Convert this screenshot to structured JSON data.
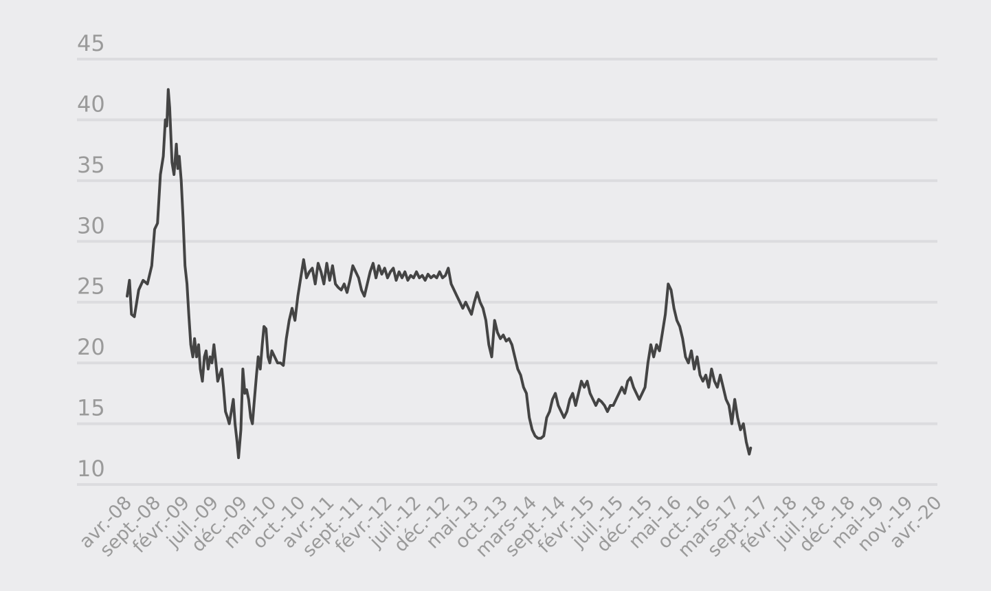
{
  "chart_data": {
    "type": "line",
    "title": "",
    "xlabel": "",
    "ylabel": "",
    "ylim": [
      10,
      45
    ],
    "yticks": [
      10,
      15,
      20,
      25,
      30,
      35,
      40,
      45
    ],
    "grid": true,
    "legend": "none",
    "line_color": "#444444",
    "background": "#ececee",
    "categories": [
      "avr.-08",
      "sept.-08",
      "févr.-09",
      "juil.-09",
      "déc.-09",
      "mai-10",
      "oct.-10",
      "avr.-11",
      "sept.-11",
      "févr.-12",
      "juil.-12",
      "déc.-12",
      "mai-13",
      "oct.-13",
      "mars-14",
      "sept.-14",
      "févr.-15",
      "juil.-15",
      "déc.-15",
      "mai-16",
      "oct.-16",
      "mars-17",
      "sept.-17",
      "févr.-18",
      "juil.-18",
      "déc.-18",
      "mai-19",
      "nov.-19",
      "avr.-20"
    ],
    "series": [
      {
        "values": [
          [
            0.0,
            25.5
          ],
          [
            0.08,
            26.8
          ],
          [
            0.15,
            24.0
          ],
          [
            0.25,
            23.8
          ],
          [
            0.4,
            26.0
          ],
          [
            0.55,
            26.8
          ],
          [
            0.7,
            26.5
          ],
          [
            0.85,
            28.0
          ],
          [
            0.95,
            31.0
          ],
          [
            1.05,
            31.5
          ],
          [
            1.15,
            35.5
          ],
          [
            1.25,
            37.0
          ],
          [
            1.32,
            40.0
          ],
          [
            1.37,
            39.5
          ],
          [
            1.42,
            42.5
          ],
          [
            1.47,
            41.0
          ],
          [
            1.55,
            36.5
          ],
          [
            1.62,
            35.5
          ],
          [
            1.7,
            38.0
          ],
          [
            1.75,
            36.0
          ],
          [
            1.8,
            37.0
          ],
          [
            1.87,
            35.0
          ],
          [
            1.93,
            32.0
          ],
          [
            2.0,
            28.0
          ],
          [
            2.07,
            26.5
          ],
          [
            2.13,
            24.0
          ],
          [
            2.2,
            21.5
          ],
          [
            2.27,
            20.5
          ],
          [
            2.33,
            22.0
          ],
          [
            2.4,
            20.5
          ],
          [
            2.47,
            21.5
          ],
          [
            2.53,
            19.5
          ],
          [
            2.6,
            18.5
          ],
          [
            2.67,
            20.5
          ],
          [
            2.73,
            21.0
          ],
          [
            2.8,
            19.5
          ],
          [
            2.87,
            20.5
          ],
          [
            2.93,
            20.0
          ],
          [
            3.0,
            21.5
          ],
          [
            3.07,
            20.0
          ],
          [
            3.13,
            18.5
          ],
          [
            3.2,
            19.0
          ],
          [
            3.27,
            19.5
          ],
          [
            3.33,
            18.0
          ],
          [
            3.4,
            16.0
          ],
          [
            3.47,
            15.5
          ],
          [
            3.53,
            15.0
          ],
          [
            3.6,
            16.0
          ],
          [
            3.67,
            17.0
          ],
          [
            3.73,
            15.0
          ],
          [
            3.8,
            13.5
          ],
          [
            3.85,
            12.2
          ],
          [
            3.93,
            14.5
          ],
          [
            4.0,
            19.5
          ],
          [
            4.07,
            17.5
          ],
          [
            4.13,
            17.8
          ],
          [
            4.2,
            17.0
          ],
          [
            4.27,
            15.5
          ],
          [
            4.33,
            15.0
          ],
          [
            4.4,
            17.0
          ],
          [
            4.47,
            19.0
          ],
          [
            4.53,
            20.5
          ],
          [
            4.6,
            19.5
          ],
          [
            4.67,
            21.5
          ],
          [
            4.73,
            23.0
          ],
          [
            4.8,
            22.8
          ],
          [
            4.87,
            20.5
          ],
          [
            4.93,
            20.0
          ],
          [
            5.0,
            21.0
          ],
          [
            5.1,
            20.5
          ],
          [
            5.2,
            20.0
          ],
          [
            5.3,
            20.0
          ],
          [
            5.4,
            19.8
          ],
          [
            5.5,
            22.0
          ],
          [
            5.6,
            23.5
          ],
          [
            5.7,
            24.5
          ],
          [
            5.8,
            23.5
          ],
          [
            5.9,
            25.5
          ],
          [
            6.0,
            27.0
          ],
          [
            6.1,
            28.5
          ],
          [
            6.2,
            27.0
          ],
          [
            6.3,
            27.5
          ],
          [
            6.4,
            27.8
          ],
          [
            6.5,
            26.5
          ],
          [
            6.6,
            28.2
          ],
          [
            6.7,
            27.5
          ],
          [
            6.8,
            26.5
          ],
          [
            6.9,
            28.2
          ],
          [
            7.0,
            26.8
          ],
          [
            7.1,
            28.0
          ],
          [
            7.2,
            26.5
          ],
          [
            7.3,
            26.2
          ],
          [
            7.4,
            26.0
          ],
          [
            7.5,
            26.5
          ],
          [
            7.6,
            25.8
          ],
          [
            7.7,
            26.8
          ],
          [
            7.8,
            28.0
          ],
          [
            7.9,
            27.5
          ],
          [
            8.0,
            27.0
          ],
          [
            8.1,
            26.0
          ],
          [
            8.2,
            25.5
          ],
          [
            8.3,
            26.5
          ],
          [
            8.4,
            27.5
          ],
          [
            8.5,
            28.2
          ],
          [
            8.6,
            27.0
          ],
          [
            8.7,
            28.0
          ],
          [
            8.8,
            27.3
          ],
          [
            8.9,
            27.8
          ],
          [
            9.0,
            27.0
          ],
          [
            9.1,
            27.5
          ],
          [
            9.2,
            27.8
          ],
          [
            9.3,
            26.8
          ],
          [
            9.4,
            27.5
          ],
          [
            9.5,
            27.0
          ],
          [
            9.6,
            27.5
          ],
          [
            9.7,
            26.8
          ],
          [
            9.8,
            27.2
          ],
          [
            9.9,
            27.0
          ],
          [
            10.0,
            27.5
          ],
          [
            10.1,
            27.0
          ],
          [
            10.2,
            27.2
          ],
          [
            10.3,
            26.8
          ],
          [
            10.4,
            27.3
          ],
          [
            10.5,
            27.0
          ],
          [
            10.6,
            27.2
          ],
          [
            10.7,
            27.0
          ],
          [
            10.8,
            27.5
          ],
          [
            10.9,
            27.0
          ],
          [
            11.0,
            27.2
          ],
          [
            11.1,
            27.8
          ],
          [
            11.2,
            26.5
          ],
          [
            11.3,
            26.0
          ],
          [
            11.4,
            25.5
          ],
          [
            11.5,
            25.0
          ],
          [
            11.6,
            24.5
          ],
          [
            11.7,
            25.0
          ],
          [
            11.8,
            24.5
          ],
          [
            11.9,
            24.0
          ],
          [
            12.0,
            25.0
          ],
          [
            12.1,
            25.8
          ],
          [
            12.2,
            25.0
          ],
          [
            12.3,
            24.5
          ],
          [
            12.4,
            23.5
          ],
          [
            12.5,
            21.5
          ],
          [
            12.6,
            20.5
          ],
          [
            12.7,
            23.5
          ],
          [
            12.8,
            22.5
          ],
          [
            12.9,
            22.0
          ],
          [
            13.0,
            22.3
          ],
          [
            13.1,
            21.8
          ],
          [
            13.2,
            22.0
          ],
          [
            13.3,
            21.5
          ],
          [
            13.4,
            20.5
          ],
          [
            13.5,
            19.5
          ],
          [
            13.6,
            19.0
          ],
          [
            13.7,
            18.0
          ],
          [
            13.8,
            17.5
          ],
          [
            13.9,
            15.5
          ],
          [
            14.0,
            14.5
          ],
          [
            14.1,
            14.0
          ],
          [
            14.2,
            13.8
          ],
          [
            14.3,
            13.8
          ],
          [
            14.4,
            14.0
          ],
          [
            14.5,
            15.5
          ],
          [
            14.6,
            16.0
          ],
          [
            14.7,
            17.0
          ],
          [
            14.8,
            17.5
          ],
          [
            14.9,
            16.5
          ],
          [
            15.0,
            16.0
          ],
          [
            15.1,
            15.5
          ],
          [
            15.2,
            16.0
          ],
          [
            15.3,
            17.0
          ],
          [
            15.4,
            17.5
          ],
          [
            15.5,
            16.5
          ],
          [
            15.6,
            17.5
          ],
          [
            15.7,
            18.5
          ],
          [
            15.8,
            18.0
          ],
          [
            15.9,
            18.5
          ],
          [
            16.0,
            17.5
          ],
          [
            16.1,
            17.0
          ],
          [
            16.2,
            16.5
          ],
          [
            16.3,
            17.0
          ],
          [
            16.4,
            16.8
          ],
          [
            16.5,
            16.5
          ],
          [
            16.6,
            16.0
          ],
          [
            16.7,
            16.5
          ],
          [
            16.8,
            16.5
          ],
          [
            16.9,
            17.0
          ],
          [
            17.0,
            17.5
          ],
          [
            17.1,
            18.0
          ],
          [
            17.2,
            17.5
          ],
          [
            17.3,
            18.5
          ],
          [
            17.4,
            18.8
          ],
          [
            17.5,
            18.0
          ],
          [
            17.6,
            17.5
          ],
          [
            17.7,
            17.0
          ],
          [
            17.8,
            17.5
          ],
          [
            17.9,
            18.0
          ],
          [
            18.0,
            20.0
          ],
          [
            18.1,
            21.5
          ],
          [
            18.2,
            20.5
          ],
          [
            18.3,
            21.5
          ],
          [
            18.4,
            21.0
          ],
          [
            18.5,
            22.5
          ],
          [
            18.6,
            24.0
          ],
          [
            18.7,
            26.5
          ],
          [
            18.8,
            26.0
          ],
          [
            18.9,
            24.5
          ],
          [
            19.0,
            23.5
          ],
          [
            19.1,
            23.0
          ],
          [
            19.2,
            22.0
          ],
          [
            19.3,
            20.5
          ],
          [
            19.4,
            20.0
          ],
          [
            19.5,
            21.0
          ],
          [
            19.6,
            19.5
          ],
          [
            19.7,
            20.5
          ],
          [
            19.8,
            19.0
          ],
          [
            19.9,
            18.5
          ],
          [
            20.0,
            19.0
          ],
          [
            20.1,
            18.0
          ],
          [
            20.2,
            19.5
          ],
          [
            20.3,
            18.5
          ],
          [
            20.4,
            18.0
          ],
          [
            20.5,
            19.0
          ],
          [
            20.6,
            18.0
          ],
          [
            20.7,
            17.0
          ],
          [
            20.8,
            16.5
          ],
          [
            20.9,
            15.0
          ],
          [
            21.0,
            17.0
          ],
          [
            21.1,
            15.5
          ],
          [
            21.2,
            14.5
          ],
          [
            21.3,
            15.0
          ],
          [
            21.4,
            13.5
          ],
          [
            21.5,
            12.5
          ],
          [
            21.55,
            13.0
          ]
        ]
      }
    ]
  }
}
